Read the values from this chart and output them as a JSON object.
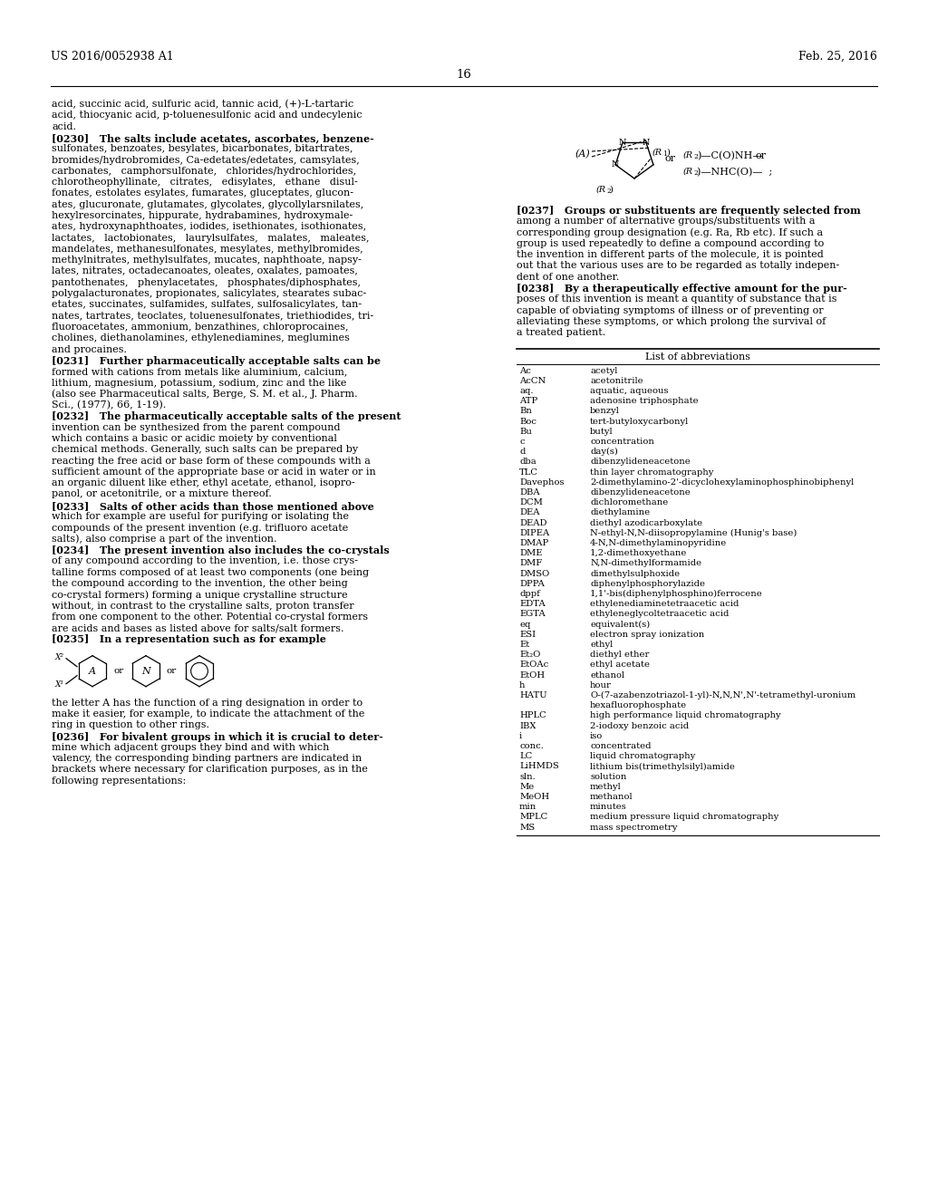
{
  "page_number": "16",
  "header_left": "US 2016/0052938 A1",
  "header_right": "Feb. 25, 2016",
  "background_color": "#ffffff",
  "text_color": "#000000",
  "left_col_lines": [
    "acid, succinic acid, sulfuric acid, tannic acid, (+)-L-tartaric",
    "acid, thiocyanic acid, p-toluenesulfonic acid and undecylenic",
    "acid.",
    "[0230]   The salts include acetates, ascorbates, benzene-",
    "sulfonates, benzoates, besylates, bicarbonates, bitartrates,",
    "bromides/hydrobromides, Ca-edetates/edetates, camsylates,",
    "carbonates,   camphorsulfonate,   chlorides/hydrochlorides,",
    "chlorotheophyllinate,   citrates,   edisylates,   ethane   disul-",
    "fonates, estolates esylates, fumarates, gluceptates, glucon-",
    "ates, glucuronate, glutamates, glycolates, glycollylarsnilates,",
    "hexylresorcinates, hippurate, hydrabamines, hydroxymale-",
    "ates, hydroxynaphthoates, iodides, isethionates, isothionates,",
    "lactates,   lactobionates,   laurylsulfates,   malates,   maleates,",
    "mandelates, methanesulfonates, mesylates, methylbromides,",
    "methylnitrates, methylsulfates, mucates, naphthoate, napsy-",
    "lates, nitrates, octadecanoates, oleates, oxalates, pamoates,",
    "pantothenates,   phenylacetates,   phosphates/diphosphates,",
    "polygalacturonates, propionates, salicylates, stearates subac-",
    "etates, succinates, sulfamides, sulfates, sulfosalicylates, tan-",
    "nates, tartrates, teoclates, toluenesulfonates, triethiodides, tri-",
    "fluoroacetates, ammonium, benzathines, chloroprocaines,",
    "cholines, diethanolamines, ethylenediamines, meglumines",
    "and procaines.",
    "[0231]   Further pharmaceutically acceptable salts can be",
    "formed with cations from metals like aluminium, calcium,",
    "lithium, magnesium, potassium, sodium, zinc and the like",
    "(also see Pharmaceutical salts, Berge, S. M. et al., J. Pharm.",
    "Sci., (1977), 66, 1-19).",
    "[0232]   The pharmaceutically acceptable salts of the present",
    "invention can be synthesized from the parent compound",
    "which contains a basic or acidic moiety by conventional",
    "chemical methods. Generally, such salts can be prepared by",
    "reacting the free acid or base form of these compounds with a",
    "sufficient amount of the appropriate base or acid in water or in",
    "an organic diluent like ether, ethyl acetate, ethanol, isopro-",
    "panol, or acetonitrile, or a mixture thereof.",
    "[0233]   Salts of other acids than those mentioned above",
    "which for example are useful for purifying or isolating the",
    "compounds of the present invention (e.g. trifluoro acetate",
    "salts), also comprise a part of the invention.",
    "[0234]   The present invention also includes the co-crystals",
    "of any compound according to the invention, i.e. those crys-",
    "talline forms composed of at least two components (one being",
    "the compound according to the invention, the other being",
    "co-crystal formers) forming a unique crystalline structure",
    "without, in contrast to the crystalline salts, proton transfer",
    "from one component to the other. Potential co-crystal formers",
    "are acids and bases as listed above for salts/salt formers.",
    "[0235]   In a representation such as for example"
  ],
  "para0235_extra": [
    "the letter A has the function of a ring designation in order to",
    "make it easier, for example, to indicate the attachment of the",
    "ring in question to other rings.",
    "[0236]   For bivalent groups in which it is crucial to deter-",
    "mine which adjacent groups they bind and with which",
    "valency, the corresponding binding partners are indicated in",
    "brackets where necessary for clarification purposes, as in the",
    "following representations:"
  ],
  "right_col_para_lines": [
    "[0237]   Groups or substituents are frequently selected from",
    "among a number of alternative groups/substituents with a",
    "corresponding group designation (e.g. Ra, Rb etc). If such a",
    "group is used repeatedly to define a compound according to",
    "the invention in different parts of the molecule, it is pointed",
    "out that the various uses are to be regarded as totally indepen-",
    "dent of one another.",
    "[0238]   By a therapeutically effective amount for the pur-",
    "poses of this invention is meant a quantity of substance that is",
    "capable of obviating symptoms of illness or of preventing or",
    "alleviating these symptoms, or which prolong the survival of",
    "a treated patient."
  ],
  "abbrev_table_title": "List of abbreviations",
  "abbrev_entries": [
    [
      "Ac",
      "acetyl"
    ],
    [
      "AcCN",
      "acetonitrile"
    ],
    [
      "aq.",
      "aquatic, aqueous"
    ],
    [
      "ATP",
      "adenosine triphosphate"
    ],
    [
      "Bn",
      "benzyl"
    ],
    [
      "Boc",
      "tert-butyloxycarbonyl"
    ],
    [
      "Bu",
      "butyl"
    ],
    [
      "c",
      "concentration"
    ],
    [
      "d",
      "day(s)"
    ],
    [
      "dba",
      "dibenzylideneacetone"
    ],
    [
      "TLC",
      "thin layer chromatography"
    ],
    [
      "Davephos",
      "2-dimethylamino-2'-dicyclohexylaminophosphinobiphenyl"
    ],
    [
      "DBA",
      "dibenzylideneacetone"
    ],
    [
      "DCM",
      "dichloromethane"
    ],
    [
      "DEA",
      "diethylamine"
    ],
    [
      "DEAD",
      "diethyl azodicarboxylate"
    ],
    [
      "DIPEA",
      "N-ethyl-N,N-diisopropylamine (Hunig's base)"
    ],
    [
      "DMAP",
      "4-N,N-dimethylaminopyridine"
    ],
    [
      "DME",
      "1,2-dimethoxyethane"
    ],
    [
      "DMF",
      "N,N-dimethylformamide"
    ],
    [
      "DMSO",
      "dimethylsulphoxide"
    ],
    [
      "DPPA",
      "diphenylphosphorylazide"
    ],
    [
      "dppf",
      "1,1'-bis(diphenylphosphino)ferrocene"
    ],
    [
      "EDTA",
      "ethylenediaminetetraacetic acid"
    ],
    [
      "EGTA",
      "ethyleneglycoltetraacetic acid"
    ],
    [
      "eq",
      "equivalent(s)"
    ],
    [
      "ESI",
      "electron spray ionization"
    ],
    [
      "Et",
      "ethyl"
    ],
    [
      "Et₂O",
      "diethyl ether"
    ],
    [
      "EtOAc",
      "ethyl acetate"
    ],
    [
      "EtOH",
      "ethanol"
    ],
    [
      "h",
      "hour"
    ],
    [
      "HATU",
      "O-(7-azabenzotriazol-1-yl)-N,N,N',N'-tetramethyl-uronium"
    ],
    [
      "",
      "hexafluorophosphate"
    ],
    [
      "HPLC",
      "high performance liquid chromatography"
    ],
    [
      "IBX",
      "2-iodoxy benzoic acid"
    ],
    [
      "i",
      "iso"
    ],
    [
      "conc.",
      "concentrated"
    ],
    [
      "LC",
      "liquid chromatography"
    ],
    [
      "LiHMDS",
      "lithium bis(trimethylsilyl)amide"
    ],
    [
      "sln.",
      "solution"
    ],
    [
      "Me",
      "methyl"
    ],
    [
      "MeOH",
      "methanol"
    ],
    [
      "min",
      "minutes"
    ],
    [
      "MPLC",
      "medium pressure liquid chromatography"
    ],
    [
      "MS",
      "mass spectrometry"
    ]
  ]
}
